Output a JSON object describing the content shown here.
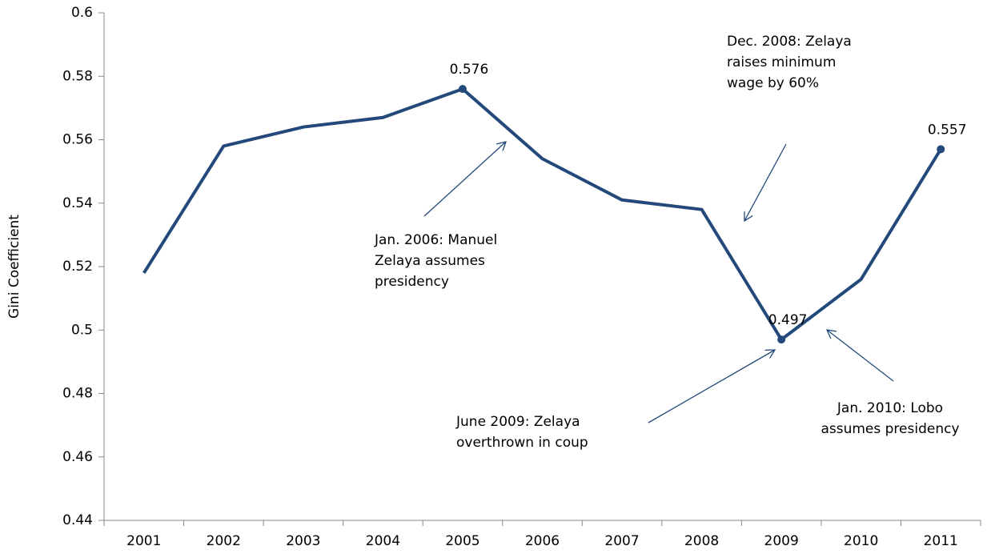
{
  "chart_data": {
    "type": "line",
    "y_axis_label": "Gini Coefficient",
    "categories": [
      "2001",
      "2002",
      "2003",
      "2004",
      "2005",
      "2006",
      "2007",
      "2008",
      "2009",
      "2010",
      "2011"
    ],
    "values": [
      0.518,
      0.558,
      0.564,
      0.567,
      0.576,
      0.554,
      0.541,
      0.538,
      0.497,
      0.516,
      0.557
    ],
    "value_labels": [
      null,
      null,
      null,
      null,
      "0.576",
      null,
      null,
      null,
      "0.497",
      null,
      "0.557"
    ],
    "color": "#23497a",
    "ylim": [
      0.44,
      0.6
    ],
    "yticks": [
      0.44,
      0.46,
      0.48,
      0.5,
      0.52,
      0.54,
      0.56,
      0.58,
      0.6
    ],
    "grid": false,
    "annotations": [
      {
        "lines": [
          "Jan. 2006: Manuel",
          "Zelaya assumes",
          "presidency"
        ]
      },
      {
        "lines": [
          "Dec. 2008: Zelaya",
          "raises minimum",
          "wage by 60%"
        ]
      },
      {
        "lines": [
          "June 2009: Zelaya",
          "overthrown in coup"
        ]
      },
      {
        "lines": [
          "Jan. 2010: Lobo",
          "assumes presidency"
        ]
      }
    ]
  }
}
